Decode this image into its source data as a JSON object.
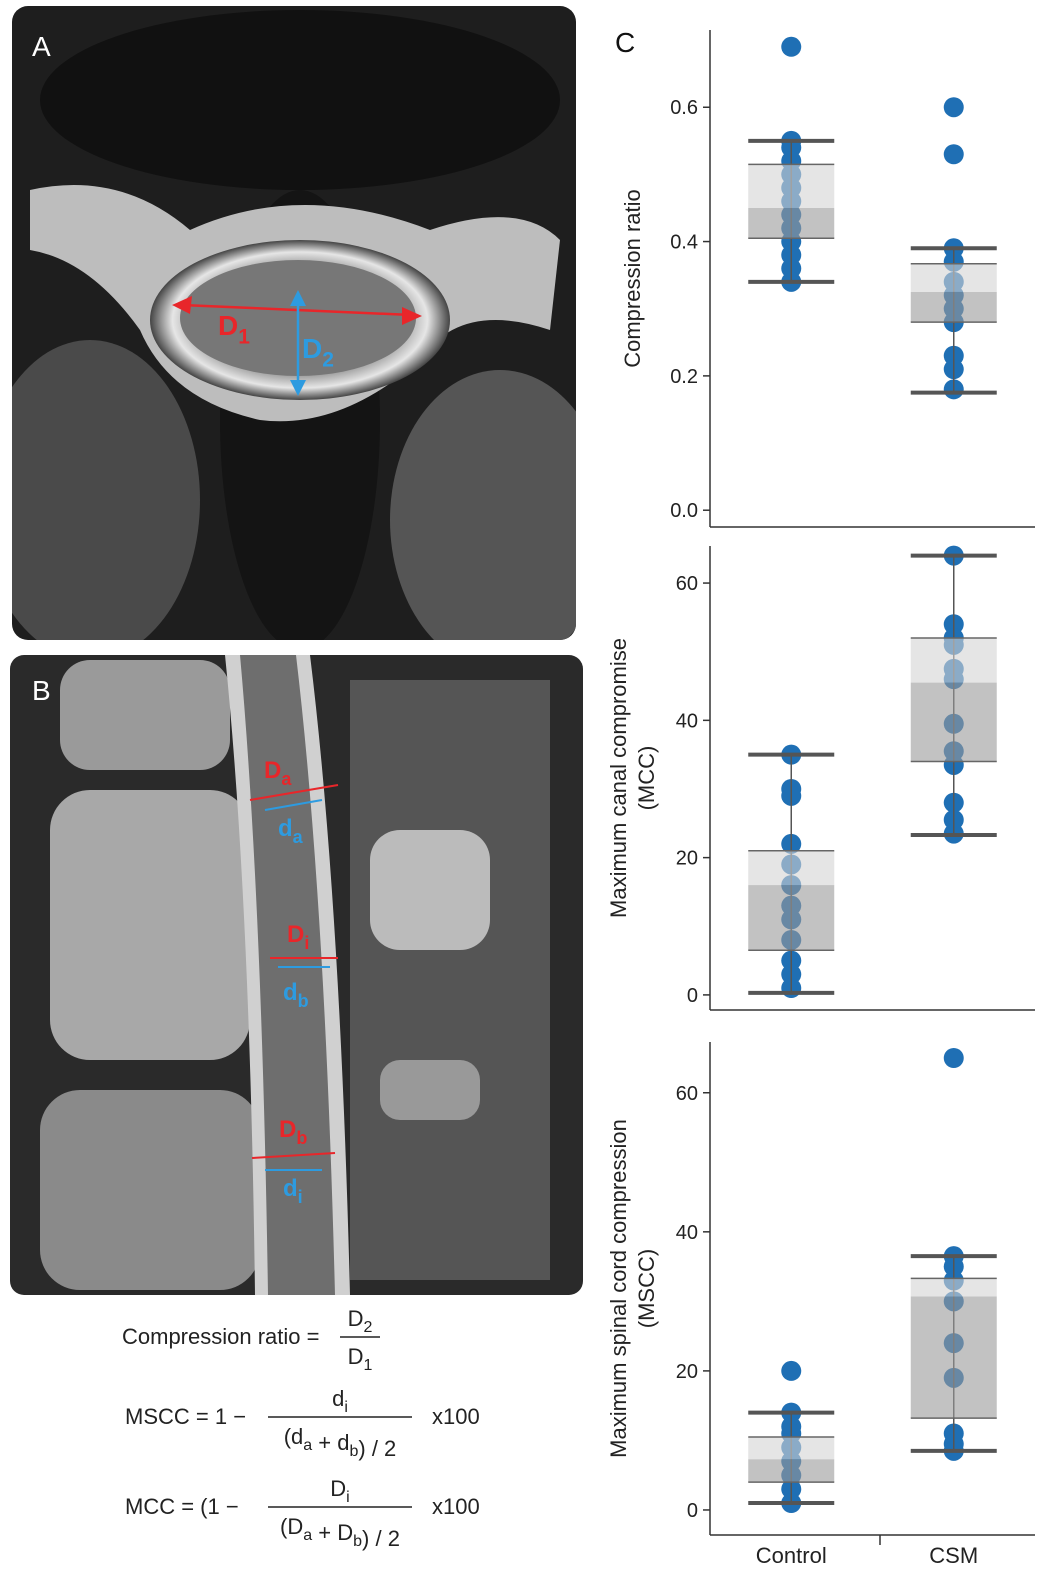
{
  "panel_a": {
    "label": "A",
    "annotations": [
      {
        "main": "D",
        "sub": "1",
        "color": "#e8262a"
      },
      {
        "main": "D",
        "sub": "2",
        "color": "#2d9be0"
      }
    ]
  },
  "panel_b": {
    "label": "B",
    "annotations": [
      {
        "main": "D",
        "sub": "a",
        "color": "#e8262a"
      },
      {
        "main": "d",
        "sub": "a",
        "color": "#2d9be0"
      },
      {
        "main": "D",
        "sub": "i",
        "color": "#e8262a"
      },
      {
        "main": "d",
        "sub": "b",
        "color": "#2d9be0"
      },
      {
        "main": "D",
        "sub": "b",
        "color": "#e8262a"
      },
      {
        "main": "d",
        "sub": "i",
        "color": "#2d9be0"
      }
    ]
  },
  "formulas": [
    {
      "lhs": "Compression ratio =",
      "num": [
        {
          "t": "D"
        },
        {
          "sub": "2"
        }
      ],
      "den": [
        {
          "t": "D"
        },
        {
          "sub": "1"
        }
      ]
    },
    {
      "lhs": "MSCC = 1 −",
      "num": [
        {
          "t": "d"
        },
        {
          "sub": "i"
        }
      ],
      "den": [
        {
          "t": "(d"
        },
        {
          "sub": "a"
        },
        {
          "t": " + d"
        },
        {
          "sub": "b"
        },
        {
          "t": ") / 2"
        }
      ],
      "rhs": "x100"
    },
    {
      "lhs": "MCC = (1 −",
      "num": [
        {
          "t": "D"
        },
        {
          "sub": "i"
        }
      ],
      "den": [
        {
          "t": "(D"
        },
        {
          "sub": "a"
        },
        {
          "t": " + D"
        },
        {
          "sub": "b"
        },
        {
          "t": ") / 2"
        }
      ],
      "rhs": "x100"
    }
  ],
  "panel_c_label": "C",
  "chart_data": [
    {
      "type": "box",
      "ylabel": [
        "Compression ratio"
      ],
      "color": "#1f6fb4",
      "ylim": [
        -0.025,
        0.715
      ],
      "yticks": [
        {
          "value": 0,
          "label": "0.0"
        },
        0.2,
        0.4,
        0.6
      ],
      "groups": [
        {
          "points": [
            0.69,
            0.55,
            0.54,
            0.52,
            0.5,
            0.48,
            0.46,
            0.44,
            0.42,
            0.4,
            0.38,
            0.36,
            0.34
          ],
          "whisker_low": 0.34,
          "q1": 0.405,
          "median": 0.45,
          "q3": 0.515,
          "whisker_high": 0.55
        },
        {
          "points": [
            0.6,
            0.53,
            0.39,
            0.37,
            0.34,
            0.32,
            0.3,
            0.28,
            0.23,
            0.21,
            0.18
          ],
          "whisker_low": 0.175,
          "q1": 0.28,
          "median": 0.325,
          "q3": 0.367,
          "whisker_high": 0.39
        }
      ]
    },
    {
      "type": "box",
      "ylabel": [
        "Maximum canal compromise",
        "(MCC)"
      ],
      "color": "#1f6fb4",
      "ylim": [
        -2.2,
        65.4
      ],
      "yticks": [
        0,
        20,
        40,
        60
      ],
      "groups": [
        {
          "points": [
            35,
            30,
            29,
            22,
            19,
            16,
            13,
            11,
            8,
            5,
            3,
            1
          ],
          "whisker_low": 0.3,
          "q1": 6.5,
          "median": 16,
          "q3": 21,
          "whisker_high": 35
        },
        {
          "points": [
            64,
            54,
            52,
            51,
            47.5,
            46,
            39.5,
            35.5,
            33.5,
            28,
            25.5,
            23.5
          ],
          "whisker_low": 23.3,
          "q1": 34,
          "median": 45.5,
          "q3": 52,
          "whisker_high": 64
        }
      ]
    },
    {
      "type": "box",
      "ylabel": [
        "Maximum spinal cord compression",
        "(MSCC)"
      ],
      "color": "#1f6fb4",
      "ylim": [
        -3.6,
        67.3
      ],
      "yticks": [
        0,
        20,
        40,
        60
      ],
      "categories": [
        "Control",
        "CSM"
      ],
      "groups": [
        {
          "points": [
            20,
            14,
            12,
            11,
            9,
            7,
            5,
            3,
            1
          ],
          "whisker_low": 1,
          "q1": 4,
          "median": 7.3,
          "q3": 10.5,
          "whisker_high": 14
        },
        {
          "points": [
            65,
            36.5,
            35,
            33,
            30,
            24,
            19,
            11,
            9.5,
            8.5
          ],
          "whisker_low": 8.5,
          "q1": 13.2,
          "median": 30.7,
          "q3": 33.3,
          "whisker_high": 36.5
        }
      ]
    }
  ]
}
